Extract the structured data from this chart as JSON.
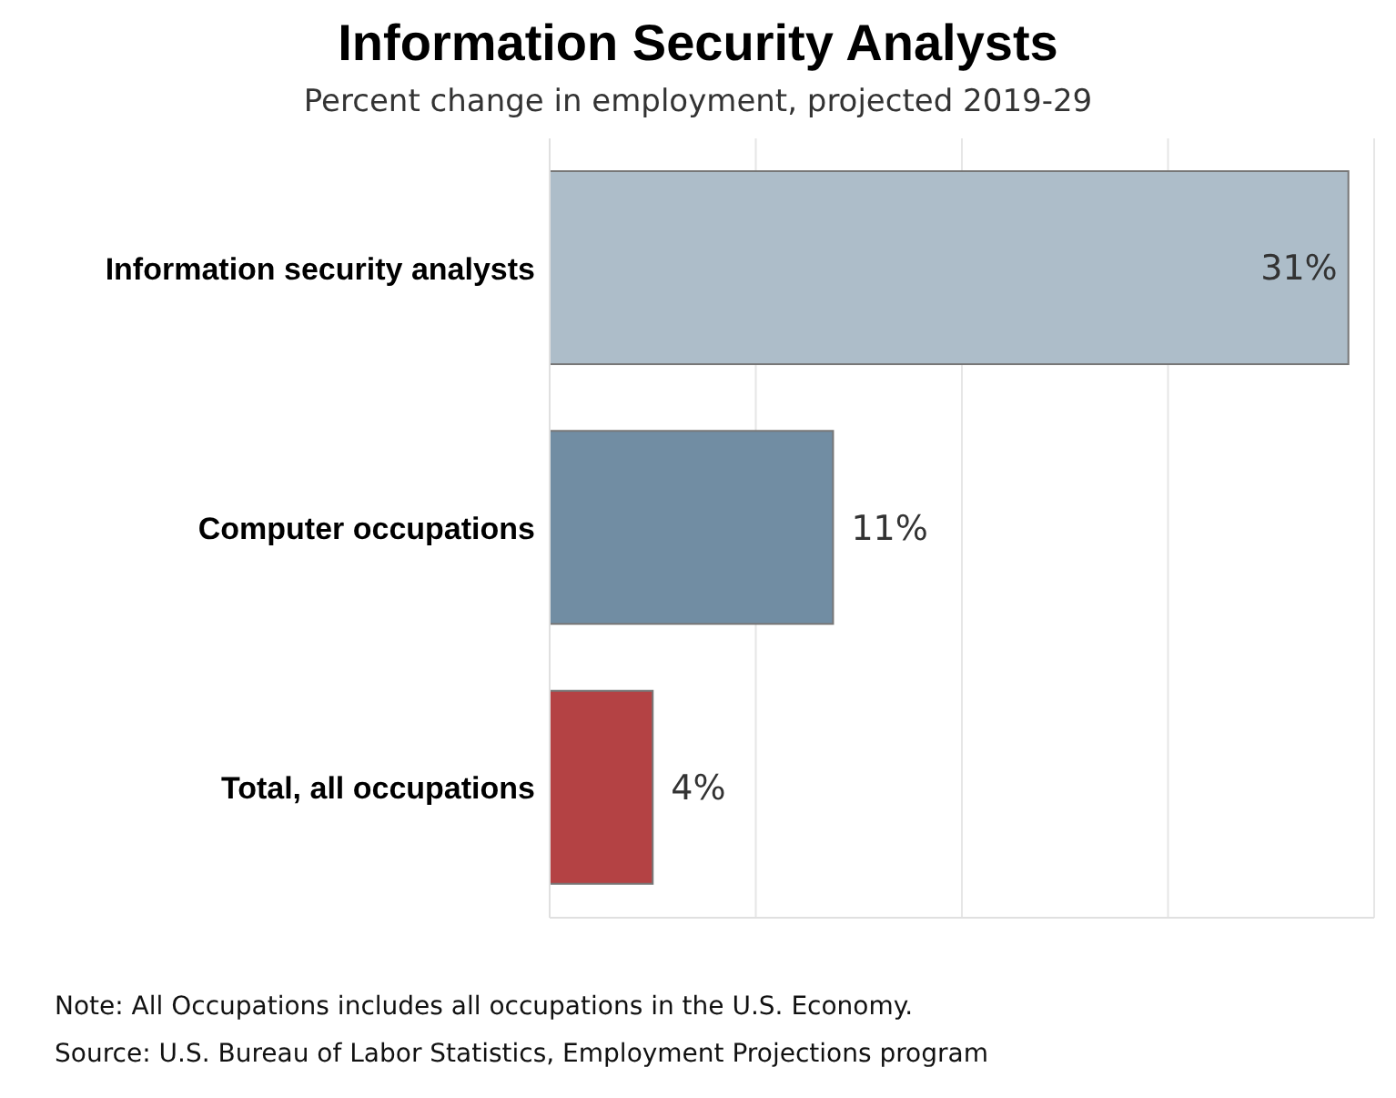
{
  "chart_data": {
    "type": "bar",
    "orientation": "horizontal",
    "title": "Information Security Analysts",
    "subtitle": "Percent change in employment, projected 2019-29",
    "categories": [
      "Information security analysts",
      "Computer occupations",
      "Total, all occupations"
    ],
    "values": [
      31,
      11,
      4
    ],
    "colors": [
      "#adbdc9",
      "#718da3",
      "#b44244"
    ],
    "value_labels": [
      "31%",
      "11%",
      "4%"
    ],
    "xlim": [
      0,
      32
    ],
    "grid": "x",
    "tick_labels": "y",
    "annotations": [
      "Note: All Occupations includes all occupations in the U.S. Economy.",
      "Source: U.S. Bureau of Labor Statistics, Employment Projections program"
    ]
  }
}
